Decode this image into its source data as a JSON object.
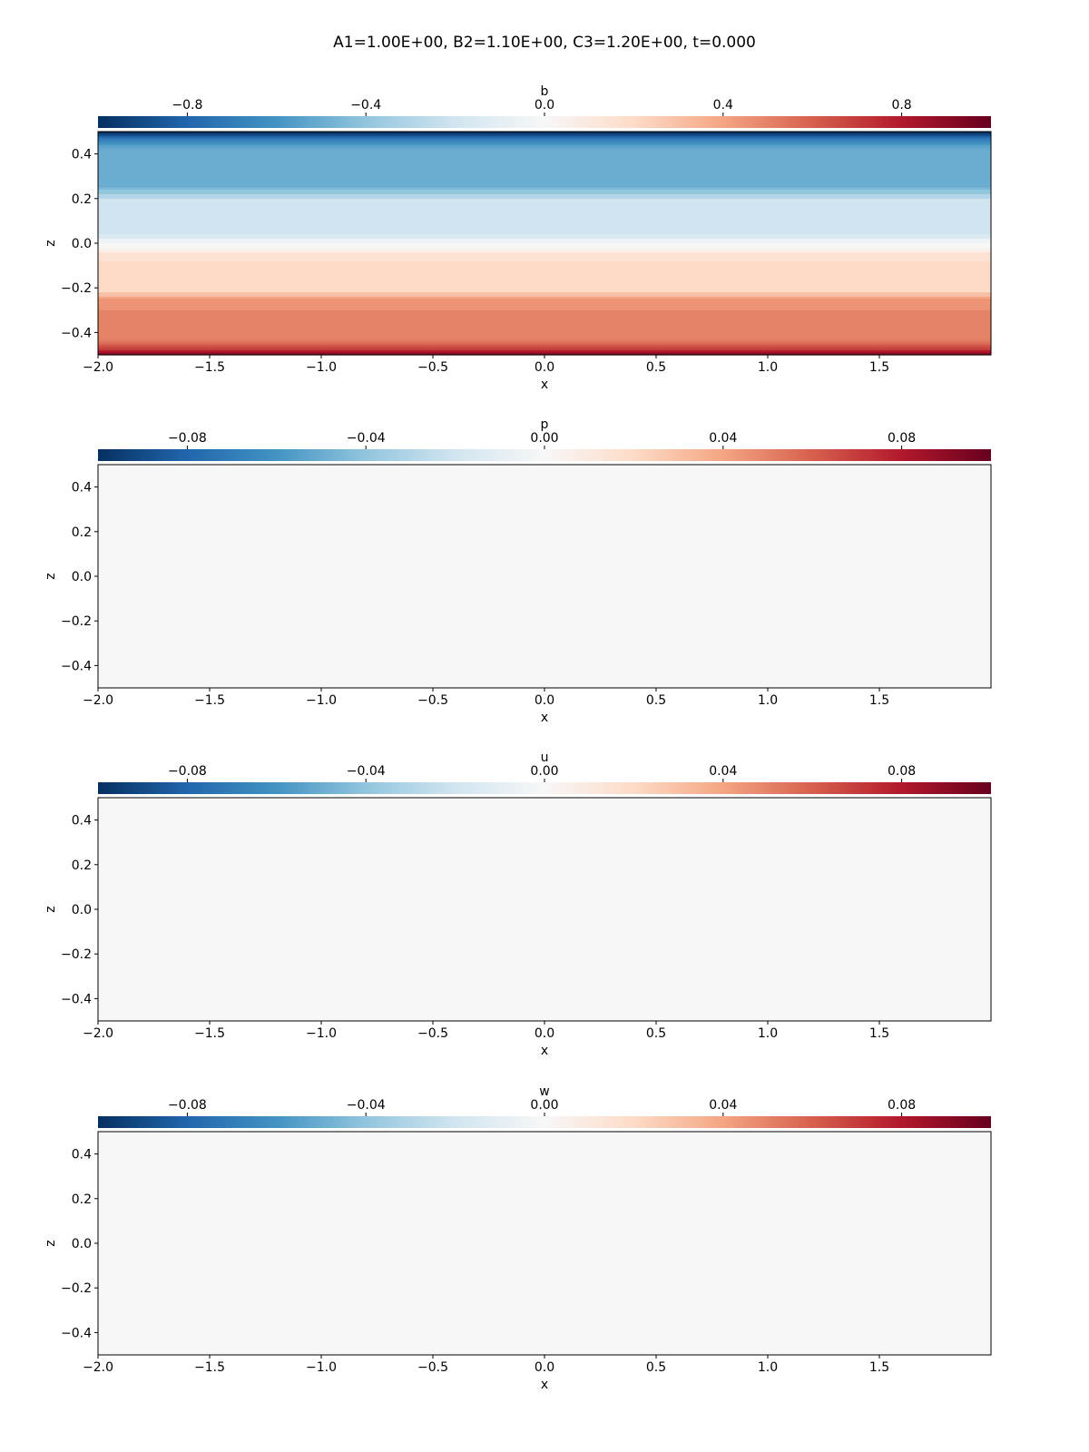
{
  "figure": {
    "title": "A1=1.00E+00, B2=1.10E+00, C3=1.20E+00, t=0.000",
    "colormap_stops": [
      "#053061",
      "#2166ac",
      "#4393c3",
      "#92c5de",
      "#d1e5f0",
      "#f7f7f7",
      "#fddbc7",
      "#f4a582",
      "#d6604d",
      "#b2182b",
      "#67001f"
    ]
  },
  "chart_data": [
    {
      "type": "heatmap",
      "variable": "b",
      "colorbar_label": "b",
      "colorbar_ticks": [
        "−0.8",
        "−0.4",
        "0.0",
        "0.4",
        "0.8"
      ],
      "colorbar_tick_values": [
        -0.8,
        -0.4,
        0.0,
        0.4,
        0.8
      ],
      "clim": [
        -1.0,
        1.0
      ],
      "xlabel": "x",
      "ylabel": "z",
      "xlim": [
        -2.0,
        2.0
      ],
      "ylim": [
        -0.5,
        0.5
      ],
      "xticks": [
        "−2.0",
        "−1.5",
        "−1.0",
        "−0.5",
        "0.0",
        "0.5",
        "1.0",
        "1.5"
      ],
      "xtick_values": [
        -2.0,
        -1.5,
        -1.0,
        -0.5,
        0.0,
        0.5,
        1.0,
        1.5
      ],
      "yticks": [
        "0.4",
        "0.2",
        "0.0",
        "−0.2",
        "−0.4"
      ],
      "ytick_values": [
        0.4,
        0.2,
        0.0,
        -0.2,
        -0.4
      ],
      "z_levels": [
        0.5,
        0.49,
        0.48,
        0.47,
        0.46,
        0.45,
        0.44,
        0.43,
        0.42,
        0.4,
        0.3,
        0.25,
        0.24,
        0.22,
        0.2,
        0.16,
        0.08,
        0.04,
        0.02,
        0.0,
        -0.02,
        -0.04,
        -0.08,
        -0.16,
        -0.2,
        -0.22,
        -0.24,
        -0.25,
        -0.3,
        -0.4,
        -0.42,
        -0.43,
        -0.44,
        -0.45,
        -0.46,
        -0.47,
        -0.48,
        -0.49,
        -0.5
      ],
      "values": [
        -1.0,
        -0.9,
        -0.8,
        -0.7,
        -0.65,
        -0.6,
        -0.55,
        -0.52,
        -0.5,
        -0.5,
        -0.5,
        -0.45,
        -0.4,
        -0.3,
        -0.2,
        -0.2,
        -0.2,
        -0.15,
        -0.05,
        0.0,
        0.05,
        0.15,
        0.2,
        0.2,
        0.2,
        0.3,
        0.4,
        0.45,
        0.5,
        0.5,
        0.5,
        0.52,
        0.55,
        0.6,
        0.65,
        0.7,
        0.8,
        0.9,
        1.0
      ]
    },
    {
      "type": "heatmap",
      "variable": "p",
      "colorbar_label": "p",
      "colorbar_ticks": [
        "−0.08",
        "−0.04",
        "0.00",
        "0.04",
        "0.08"
      ],
      "colorbar_tick_values": [
        -0.08,
        -0.04,
        0.0,
        0.04,
        0.08
      ],
      "clim": [
        -0.1,
        0.1
      ],
      "xlabel": "x",
      "ylabel": "z",
      "xlim": [
        -2.0,
        2.0
      ],
      "ylim": [
        -0.5,
        0.5
      ],
      "xticks": [
        "−2.0",
        "−1.5",
        "−1.0",
        "−0.5",
        "0.0",
        "0.5",
        "1.0",
        "1.5"
      ],
      "xtick_values": [
        -2.0,
        -1.5,
        -1.0,
        -0.5,
        0.0,
        0.5,
        1.0,
        1.5
      ],
      "yticks": [
        "0.4",
        "0.2",
        "0.0",
        "−0.2",
        "−0.4"
      ],
      "ytick_values": [
        0.4,
        0.2,
        0.0,
        -0.2,
        -0.4
      ],
      "z_levels": [
        0.5,
        -0.5
      ],
      "values": [
        0.0,
        0.0
      ]
    },
    {
      "type": "heatmap",
      "variable": "u",
      "colorbar_label": "u",
      "colorbar_ticks": [
        "−0.08",
        "−0.04",
        "0.00",
        "0.04",
        "0.08"
      ],
      "colorbar_tick_values": [
        -0.08,
        -0.04,
        0.0,
        0.04,
        0.08
      ],
      "clim": [
        -0.1,
        0.1
      ],
      "xlabel": "x",
      "ylabel": "z",
      "xlim": [
        -2.0,
        2.0
      ],
      "ylim": [
        -0.5,
        0.5
      ],
      "xticks": [
        "−2.0",
        "−1.5",
        "−1.0",
        "−0.5",
        "0.0",
        "0.5",
        "1.0",
        "1.5"
      ],
      "xtick_values": [
        -2.0,
        -1.5,
        -1.0,
        -0.5,
        0.0,
        0.5,
        1.0,
        1.5
      ],
      "yticks": [
        "0.4",
        "0.2",
        "0.0",
        "−0.2",
        "−0.4"
      ],
      "ytick_values": [
        0.4,
        0.2,
        0.0,
        -0.2,
        -0.4
      ],
      "z_levels": [
        0.5,
        -0.5
      ],
      "values": [
        0.0,
        0.0
      ]
    },
    {
      "type": "heatmap",
      "variable": "w",
      "colorbar_label": "w",
      "colorbar_ticks": [
        "−0.08",
        "−0.04",
        "0.00",
        "0.04",
        "0.08"
      ],
      "colorbar_tick_values": [
        -0.08,
        -0.04,
        0.0,
        0.04,
        0.08
      ],
      "clim": [
        -0.1,
        0.1
      ],
      "xlabel": "x",
      "ylabel": "z",
      "xlim": [
        -2.0,
        2.0
      ],
      "ylim": [
        -0.5,
        0.5
      ],
      "xticks": [
        "−2.0",
        "−1.5",
        "−1.0",
        "−0.5",
        "0.0",
        "0.5",
        "1.0",
        "1.5"
      ],
      "xtick_values": [
        -2.0,
        -1.5,
        -1.0,
        -0.5,
        0.0,
        0.5,
        1.0,
        1.5
      ],
      "yticks": [
        "0.4",
        "0.2",
        "0.0",
        "−0.2",
        "−0.4"
      ],
      "ytick_values": [
        0.4,
        0.2,
        0.0,
        -0.2,
        -0.4
      ],
      "z_levels": [
        0.5,
        -0.5
      ],
      "values": [
        0.0,
        0.0
      ]
    }
  ]
}
